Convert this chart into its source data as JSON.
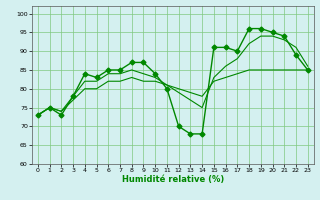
{
  "title": "",
  "xlabel": "Humidité relative (%)",
  "ylabel": "",
  "background_color": "#d4f0f0",
  "grid_color": "#80c880",
  "line_color": "#008800",
  "xlim": [
    -0.5,
    23.5
  ],
  "ylim": [
    60,
    102
  ],
  "yticks": [
    60,
    65,
    70,
    75,
    80,
    85,
    90,
    95,
    100
  ],
  "xticks": [
    0,
    1,
    2,
    3,
    4,
    5,
    6,
    7,
    8,
    9,
    10,
    11,
    12,
    13,
    14,
    15,
    16,
    17,
    18,
    19,
    20,
    21,
    22,
    23
  ],
  "series": [
    {
      "x": [
        0,
        1,
        2,
        3,
        4,
        5,
        6,
        7,
        8,
        9,
        10,
        11,
        12,
        13,
        14,
        15,
        16,
        17,
        18,
        19,
        20,
        21,
        22,
        23
      ],
      "y": [
        73,
        75,
        73,
        78,
        84,
        83,
        85,
        85,
        87,
        87,
        84,
        80,
        70,
        68,
        68,
        91,
        91,
        90,
        96,
        96,
        95,
        94,
        89,
        85
      ],
      "marker": "D",
      "markersize": 2.5,
      "linewidth": 1.0
    },
    {
      "x": [
        0,
        1,
        2,
        3,
        4,
        5,
        6,
        7,
        8,
        9,
        10,
        11,
        12,
        13,
        14,
        15,
        16,
        17,
        18,
        19,
        20,
        21,
        22,
        23
      ],
      "y": [
        73,
        75,
        74,
        78,
        82,
        82,
        84,
        84,
        85,
        84,
        83,
        81,
        79,
        77,
        75,
        83,
        86,
        88,
        92,
        94,
        94,
        93,
        91,
        86
      ],
      "marker": null,
      "markersize": 0,
      "linewidth": 0.8
    },
    {
      "x": [
        0,
        1,
        2,
        3,
        4,
        5,
        6,
        7,
        8,
        9,
        10,
        11,
        12,
        13,
        14,
        15,
        16,
        17,
        18,
        19,
        20,
        21,
        22,
        23
      ],
      "y": [
        73,
        75,
        74,
        77,
        80,
        80,
        82,
        82,
        83,
        82,
        82,
        81,
        80,
        79,
        78,
        82,
        83,
        84,
        85,
        85,
        85,
        85,
        85,
        85
      ],
      "marker": null,
      "markersize": 0,
      "linewidth": 0.8
    }
  ]
}
